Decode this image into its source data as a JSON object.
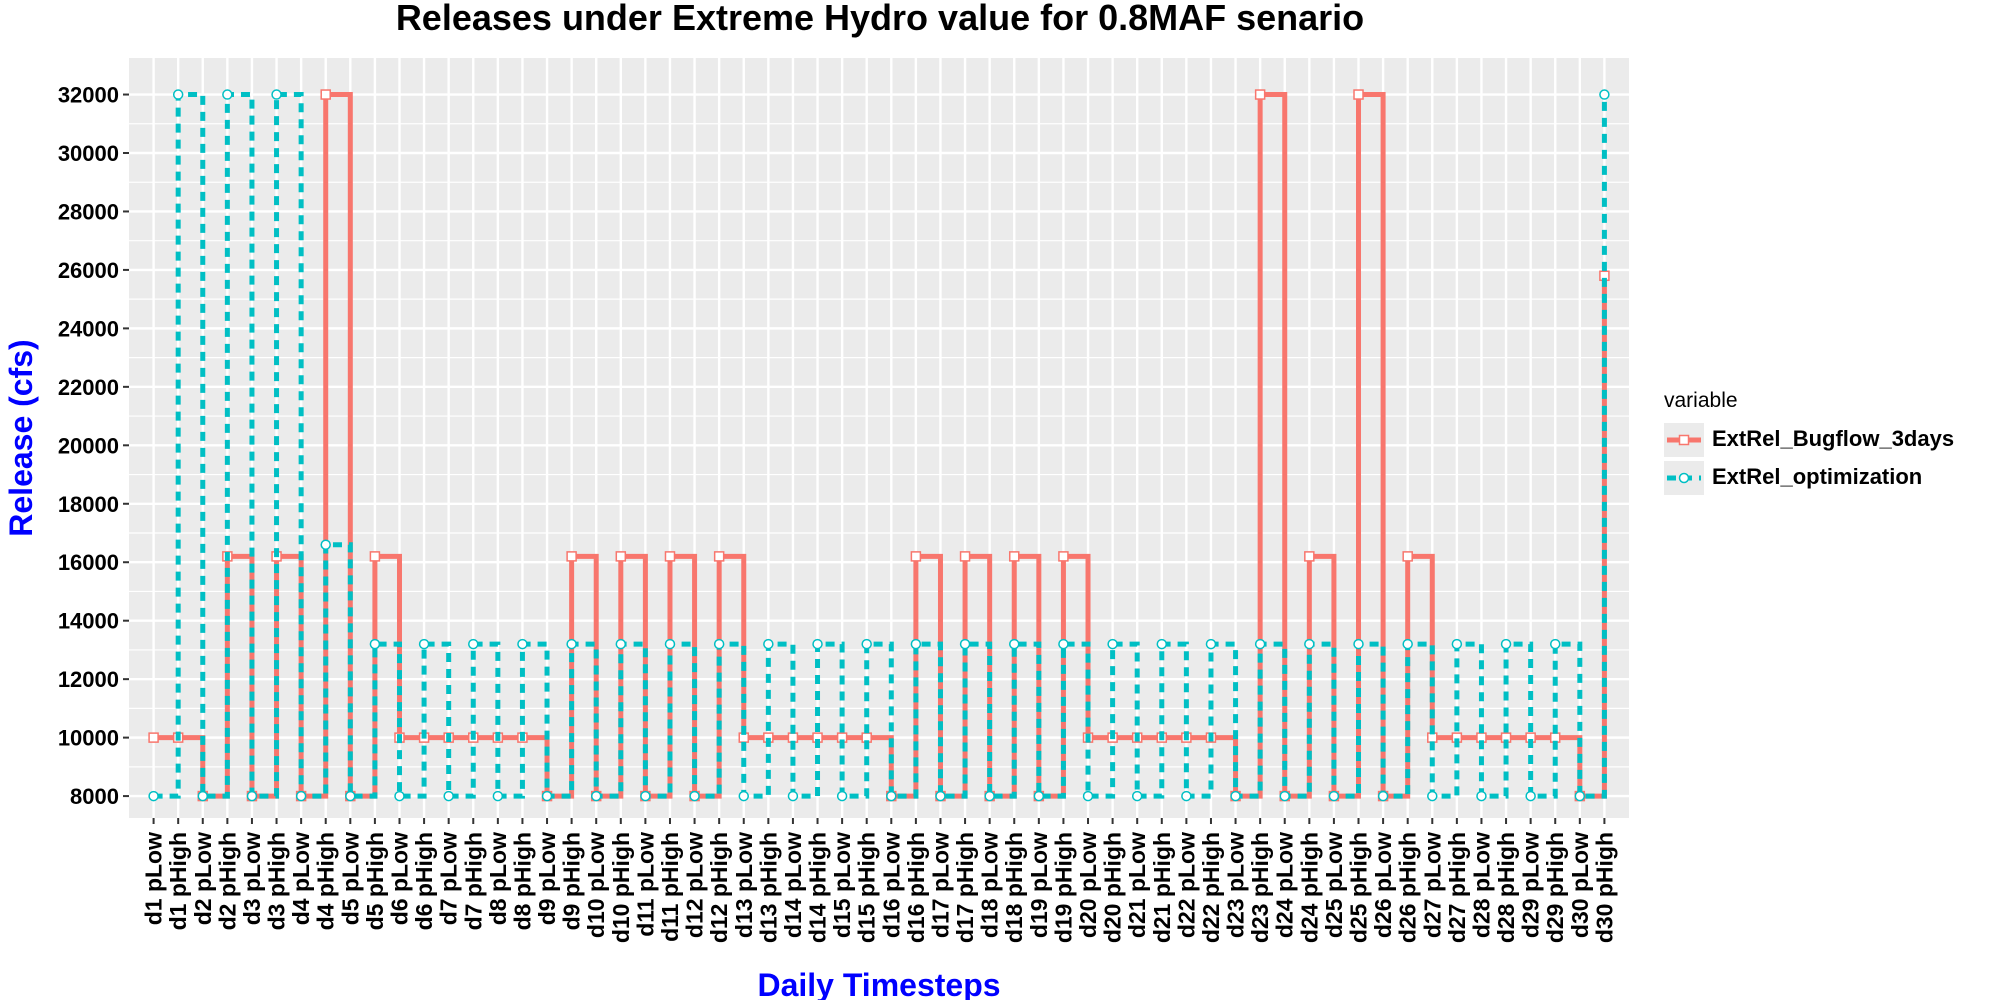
{
  "chart_data": {
    "type": "line",
    "title": "Releases under Extreme Hydro value for 0.8MAF senario",
    "xlabel": "Daily Timesteps",
    "ylabel": "Release (cfs)",
    "ylim": [
      7250,
      33250
    ],
    "yticks": [
      8000,
      10000,
      12000,
      14000,
      16000,
      18000,
      20000,
      22000,
      24000,
      26000,
      28000,
      30000,
      32000
    ],
    "ytick_labels": [
      "8000",
      "10000",
      "12000",
      "14000",
      "16000",
      "18000",
      "20000",
      "22000",
      "24000",
      "26000",
      "28000",
      "30000",
      "32000"
    ],
    "grid": true,
    "step": true,
    "legend_title": "variable",
    "legend_position": "right",
    "categories": [
      "d1 pLow",
      "d1 pHigh",
      "d2 pLow",
      "d2 pHigh",
      "d3 pLow",
      "d3 pHigh",
      "d4 pLow",
      "d4 pHigh",
      "d5 pLow",
      "d5 pHigh",
      "d6 pLow",
      "d6 pHigh",
      "d7 pLow",
      "d7 pHigh",
      "d8 pLow",
      "d8 pHigh",
      "d9 pLow",
      "d9 pHigh",
      "d10 pLow",
      "d10 pHigh",
      "d11 pLow",
      "d11 pHigh",
      "d12 pLow",
      "d12 pHigh",
      "d13 pLow",
      "d13 pHigh",
      "d14 pLow",
      "d14 pHigh",
      "d15 pLow",
      "d15 pHigh",
      "d16 pLow",
      "d16 pHigh",
      "d17 pLow",
      "d17 pHigh",
      "d18 pLow",
      "d18 pHigh",
      "d19 pLow",
      "d19 pHigh",
      "d20 pLow",
      "d20 pHigh",
      "d21 pLow",
      "d21 pHigh",
      "d22 pLow",
      "d22 pHigh",
      "d23 pLow",
      "d23 pHigh",
      "d24 pLow",
      "d24 pHigh",
      "d25 pLow",
      "d25 pHigh",
      "d26 pLow",
      "d26 pHigh",
      "d27 pLow",
      "d27 pHigh",
      "d28 pLow",
      "d28 pHigh",
      "d29 pLow",
      "d29 pHigh",
      "d30 pLow",
      "d30 pHigh"
    ],
    "series": [
      {
        "name": "ExtRel_Bugflow_3days",
        "color": "#F8766D",
        "marker": "square",
        "linetype": "solid",
        "values": [
          10000,
          10000,
          8000,
          16200,
          8000,
          16200,
          8000,
          32000,
          8000,
          16200,
          10000,
          10000,
          10000,
          10000,
          10000,
          10000,
          8000,
          16200,
          8000,
          16200,
          8000,
          16200,
          8000,
          16200,
          10000,
          10000,
          10000,
          10000,
          10000,
          10000,
          8000,
          16200,
          8000,
          16200,
          8000,
          16200,
          8000,
          16200,
          10000,
          10000,
          10000,
          10000,
          10000,
          10000,
          8000,
          32000,
          8000,
          16200,
          8000,
          32000,
          8000,
          16200,
          10000,
          10000,
          10000,
          10000,
          10000,
          10000,
          8000,
          25800
        ]
      },
      {
        "name": "ExtRel_optimization",
        "color": "#00BFC4",
        "marker": "circle",
        "linetype": "dashed",
        "values": [
          8000,
          32000,
          8000,
          32000,
          8000,
          32000,
          8000,
          16600,
          8000,
          13200,
          8000,
          13200,
          8000,
          13200,
          8000,
          13200,
          8000,
          13200,
          8000,
          13200,
          8000,
          13200,
          8000,
          13200,
          8000,
          13200,
          8000,
          13200,
          8000,
          13200,
          8000,
          13200,
          8000,
          13200,
          8000,
          13200,
          8000,
          13200,
          8000,
          13200,
          8000,
          13200,
          8000,
          13200,
          8000,
          13200,
          8000,
          13200,
          8000,
          13200,
          8000,
          13200,
          8000,
          13200,
          8000,
          13200,
          8000,
          13200,
          8000,
          32000
        ]
      }
    ]
  },
  "colors": {
    "panel_background": "#EBEBEB",
    "grid": "#FFFFFF",
    "axis_title": "#0000FF"
  }
}
